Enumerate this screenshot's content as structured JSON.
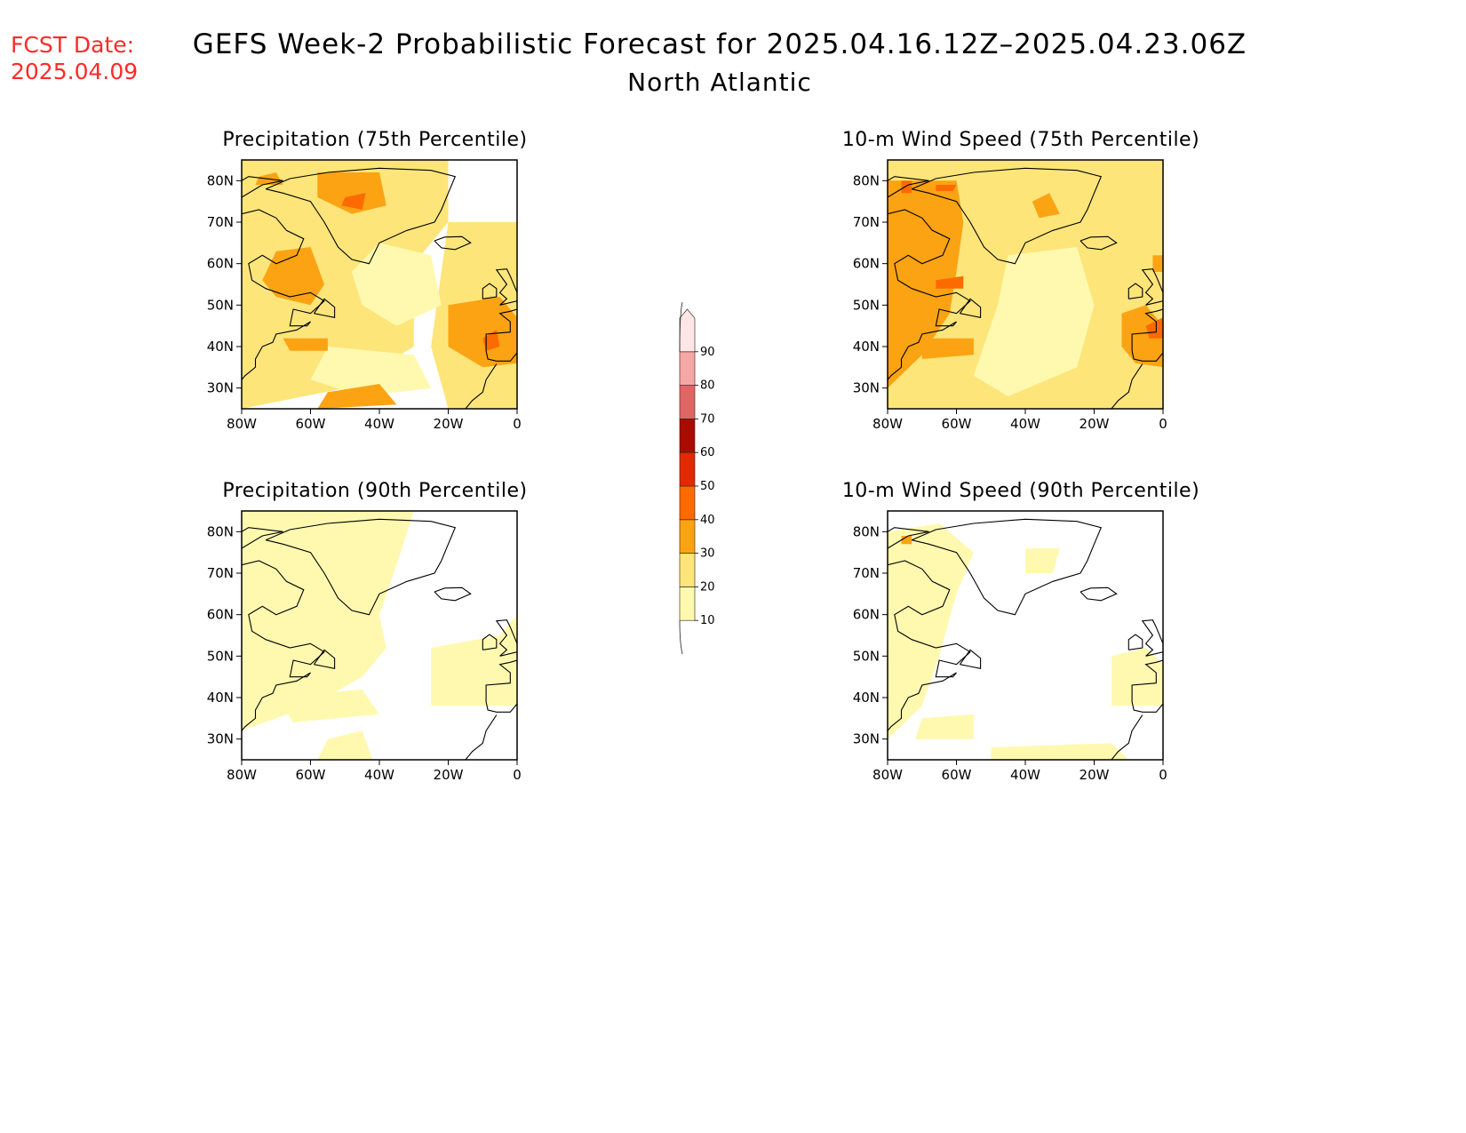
{
  "header": {
    "fcst_label": "FCST Date:",
    "fcst_date": "2025.04.09",
    "title": "GEFS Week-2 Probabilistic Forecast for 2025.04.16.12Z–2025.04.23.06Z",
    "subtitle": "North Atlantic"
  },
  "axes": {
    "lat_ticks": [
      "80N",
      "70N",
      "60N",
      "50N",
      "40N",
      "30N"
    ],
    "lon_ticks": [
      "80W",
      "60W",
      "40W",
      "20W",
      "0"
    ]
  },
  "panels": [
    {
      "id": "precip-75",
      "title": "Precipitation (75th Percentile)",
      "intensity": 0.75
    },
    {
      "id": "wind-75",
      "title": "10-m Wind Speed (75th Percentile)",
      "intensity": 0.7
    },
    {
      "id": "precip-90",
      "title": "Precipitation (90th Percentile)",
      "intensity": 0.25
    },
    {
      "id": "wind-90",
      "title": "10-m Wind Speed (90th Percentile)",
      "intensity": 0.2
    }
  ],
  "colorbar": {
    "levels": [
      "10",
      "20",
      "30",
      "40",
      "50",
      "60",
      "70",
      "80",
      "90"
    ],
    "colors": [
      "#fff9b0",
      "#fde57a",
      "#fba313",
      "#fd6a00",
      "#e12a00",
      "#a80c00",
      "#e06666",
      "#f5a6a6",
      "#ffe6e6"
    ]
  }
}
